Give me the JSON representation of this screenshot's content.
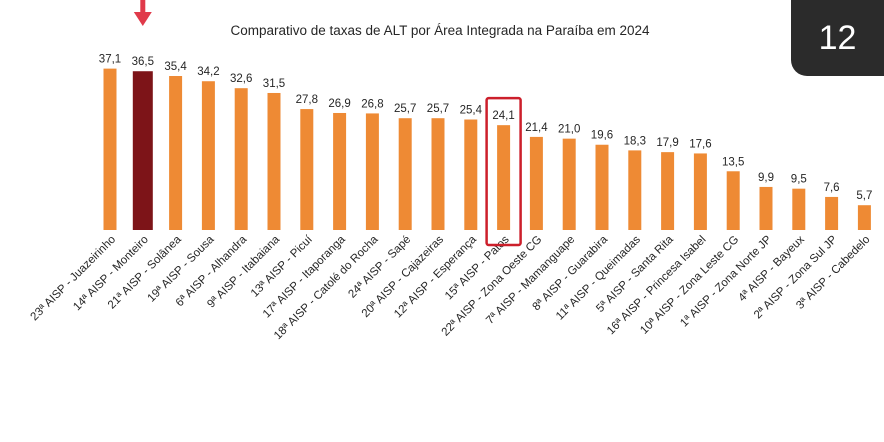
{
  "badge": "12",
  "chart_data": {
    "type": "bar",
    "title": "Comparativo de taxas de ALT por Área Integrada na Paraíba em 2024",
    "xlabel": "",
    "ylabel": "",
    "ylim": [
      0,
      40
    ],
    "grid": false,
    "decimal_separator": ",",
    "categories": [
      "23ª AISP - Juazeirinho",
      "14ª AISP - Monteiro",
      "21ª AISP - Solânea",
      "19ª AISP - Sousa",
      "6ª AISP - Alhandra",
      "9ª AISP - Itabaiana",
      "13ª AISP - Picuí",
      "17ª AISP - Itaporanga",
      "18ª AISP - Catolé do Rocha",
      "24ª AISP - Sapé",
      "20ª AISP - Cajazeiras",
      "12ª AISP - Esperança",
      "15ª AISP - Patos",
      "22ª AISP - Zona Oeste CG",
      "7ª AISP - Mamanguape",
      "8ª AISP - Guarabira",
      "11ª AISP - Queimadas",
      "5ª AISP - Santa Rita",
      "16ª AISP - Princesa Isabel",
      "10ª AISP - Zona Leste CG",
      "1ª AISP - Zona Norte JP",
      "4ª AISP - Bayeux",
      "2ª AISP - Zona Sul JP",
      "3ª AISP - Cabedelo"
    ],
    "values": [
      37.1,
      36.5,
      35.4,
      34.2,
      32.6,
      31.5,
      27.8,
      26.9,
      26.8,
      25.7,
      25.7,
      25.4,
      24.1,
      21.4,
      21.0,
      19.6,
      18.3,
      17.9,
      17.6,
      13.5,
      9.9,
      9.5,
      7.6,
      5.7
    ],
    "colors": {
      "bar": "#ee8a34",
      "highlight_bar": "#7d1418",
      "highlight_box": "#cc1f2b",
      "arrow": "#e03a4a"
    },
    "highlight_index": 1,
    "boxed_index": 12
  }
}
